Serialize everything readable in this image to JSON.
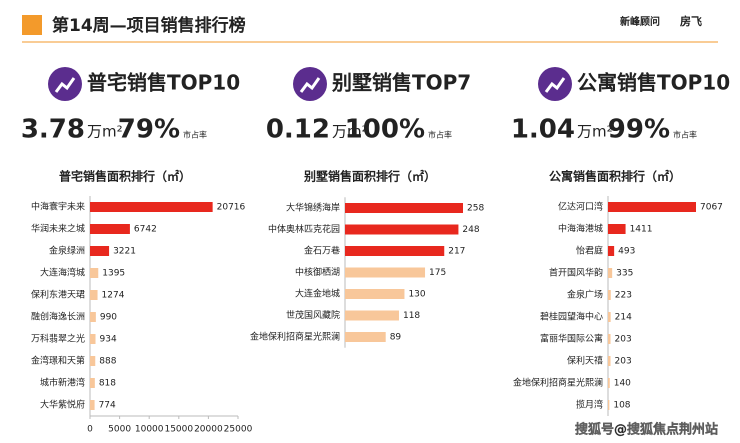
{
  "header": {
    "title": "第14周—项目销售排行榜",
    "logos": [
      "新峰顾问",
      "房飞"
    ]
  },
  "panels": [
    {
      "heading": "普宅销售TOP10",
      "area_value": "3.78",
      "area_unit": "万m²",
      "share_value": "79%",
      "share_label": "市占率"
    },
    {
      "heading": "别墅销售TOP7",
      "area_value": "0.12",
      "area_unit": "万m²",
      "share_value": "100%",
      "share_label": "市占率"
    },
    {
      "heading": "公寓销售TOP10",
      "area_value": "1.04",
      "area_unit": "万m²",
      "share_value": "99%",
      "share_label": "市占率"
    }
  ],
  "watermark": "搜狐号@搜狐焦点荆州站",
  "chart_data": [
    {
      "type": "bar",
      "orientation": "horizontal",
      "title": "普宅销售面积排行（㎡）",
      "categories": [
        "中海寰宇未来",
        "华润未来之城",
        "金泉绿洲",
        "大连海湾城",
        "保利东港天珺",
        "融创海逸长洲",
        "万科翡翠之光",
        "金湾璟和天第",
        "城市新港湾",
        "大华紫悦府"
      ],
      "values": [
        20716,
        6742,
        3221,
        1395,
        1274,
        990,
        934,
        888,
        818,
        774
      ],
      "colors": [
        "#e8281e",
        "#e8281e",
        "#e8281e",
        "#f8c79a",
        "#f8c79a",
        "#f8c79a",
        "#f8c79a",
        "#f8c79a",
        "#f8c79a",
        "#f8c79a"
      ],
      "xlim": [
        0,
        25000
      ],
      "xticks": [
        0,
        5000,
        10000,
        15000,
        20000,
        25000
      ]
    },
    {
      "type": "bar",
      "orientation": "horizontal",
      "title": "别墅销售面积排行（㎡）",
      "categories": [
        "大华锦绣海岸",
        "中体奥林匹克花园",
        "金石万巷",
        "中核御栖湖",
        "大连金地城",
        "世茂国风藏院",
        "金地保利招商星光熙澜"
      ],
      "values": [
        258,
        248,
        217,
        175,
        130,
        118,
        89
      ],
      "colors": [
        "#e8281e",
        "#e8281e",
        "#e8281e",
        "#f8c79a",
        "#f8c79a",
        "#f8c79a",
        "#f8c79a"
      ]
    },
    {
      "type": "bar",
      "orientation": "horizontal",
      "title": "公寓销售面积排行（㎡）",
      "categories": [
        "亿达河口湾",
        "中海海港城",
        "怡君庭",
        "首开国风华韵",
        "金泉广场",
        "碧桂园望海中心",
        "富丽华国际公寓",
        "保利天禧",
        "金地保利招商星光熙澜",
        "揽月湾"
      ],
      "values": [
        7067,
        1411,
        493,
        335,
        223,
        214,
        203,
        203,
        140,
        108
      ],
      "colors": [
        "#e8281e",
        "#e8281e",
        "#e8281e",
        "#f8c79a",
        "#f8c79a",
        "#f8c79a",
        "#f8c79a",
        "#f8c79a",
        "#f8c79a",
        "#f8c79a"
      ]
    }
  ]
}
